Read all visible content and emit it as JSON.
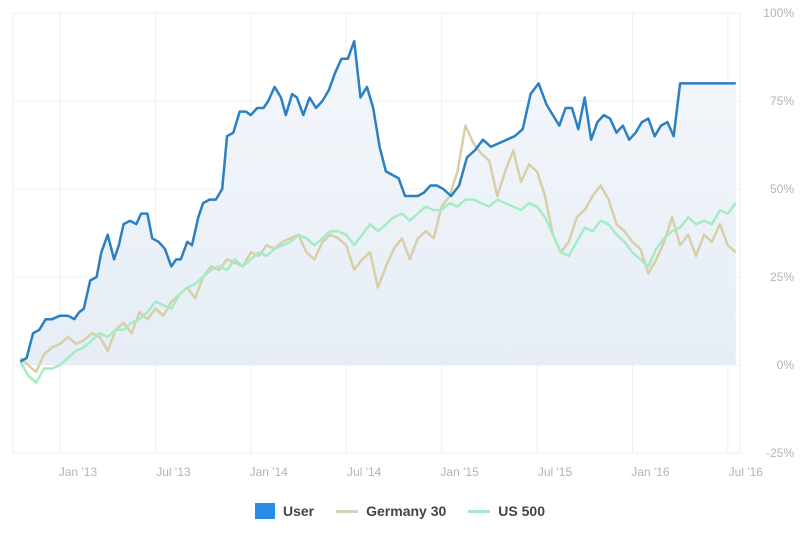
{
  "chart_data": {
    "type": "line",
    "title": "",
    "xlabel": "",
    "ylabel": "",
    "x_unit": "months since Jan 2013",
    "xlim": [
      -2.6,
      42.7
    ],
    "ylim": [
      -25,
      100
    ],
    "y_ticks": [
      {
        "value": 100,
        "label": "100%"
      },
      {
        "value": 75,
        "label": "75%"
      },
      {
        "value": 50,
        "label": "50%"
      },
      {
        "value": 25,
        "label": "25%"
      },
      {
        "value": 0,
        "label": "0%"
      },
      {
        "value": -25,
        "label": "-25%"
      }
    ],
    "x_ticks": [
      {
        "value": 0,
        "label": "Jan '13"
      },
      {
        "value": 6,
        "label": "Jul '13"
      },
      {
        "value": 12,
        "label": "Jan '14"
      },
      {
        "value": 18,
        "label": "Jul '14"
      },
      {
        "value": 24,
        "label": "Jan '15"
      },
      {
        "value": 30,
        "label": "Jul '15"
      },
      {
        "value": 36,
        "label": "Jan '16"
      },
      {
        "value": 42,
        "label": "Jul '16"
      }
    ],
    "grid": true,
    "legend_position": "bottom",
    "series": [
      {
        "name": "User",
        "color": "#2b7fc3",
        "legend_color": "#2a8ce6",
        "area": true,
        "x": [
          -2.5,
          -2.1,
          -1.7,
          -1.3,
          -0.9,
          -0.5,
          0,
          0.5,
          0.9,
          1.2,
          1.5,
          1.9,
          2.3,
          2.6,
          3,
          3.4,
          3.7,
          4,
          4.4,
          4.8,
          5.1,
          5.5,
          5.8,
          6.2,
          6.6,
          7,
          7.3,
          7.6,
          8,
          8.3,
          8.7,
          9,
          9.4,
          9.8,
          10.2,
          10.5,
          10.9,
          11.3,
          11.7,
          12,
          12.4,
          12.8,
          13.1,
          13.5,
          13.9,
          14.2,
          14.6,
          14.9,
          15.3,
          15.7,
          16.1,
          16.5,
          16.9,
          17.3,
          17.7,
          18.1,
          18.5,
          18.9,
          19.3,
          19.7,
          20.1,
          20.5,
          20.9,
          21.3,
          21.7,
          22.1,
          22.5,
          22.9,
          23.3,
          23.7,
          24.1,
          24.6,
          25.1,
          25.6,
          26.1,
          26.6,
          27.1,
          27.6,
          28.1,
          28.6,
          29.1,
          29.6,
          30.1,
          30.6,
          31,
          31.4,
          31.8,
          32.2,
          32.6,
          33,
          33.4,
          33.8,
          34.2,
          34.6,
          35,
          35.4,
          35.8,
          36.2,
          36.6,
          37,
          37.4,
          37.8,
          38.2,
          38.6,
          39,
          39.4,
          39.8,
          40.2,
          40.6,
          41,
          41.4,
          41.8,
          42.2,
          42.5
        ],
        "y": [
          1,
          2,
          9,
          10,
          13,
          13,
          14,
          14,
          13,
          15,
          16,
          24,
          25,
          32,
          37,
          30,
          34,
          40,
          41,
          40,
          43,
          43,
          36,
          35,
          33,
          28,
          30,
          30,
          35,
          34,
          42,
          46,
          47,
          47,
          50,
          65,
          66,
          72,
          72,
          71,
          73,
          73,
          75,
          79,
          76,
          71,
          77,
          76,
          71,
          76,
          73,
          75,
          78,
          83,
          87,
          87,
          92,
          76,
          79,
          73,
          62,
          55,
          54,
          53,
          48,
          48,
          48,
          49,
          51,
          51,
          50,
          48,
          51,
          59,
          61,
          64,
          62,
          63,
          64,
          65,
          67,
          77,
          80,
          74,
          71,
          68,
          73,
          73,
          67,
          76,
          64,
          69,
          71,
          70,
          66,
          68,
          64,
          66,
          69,
          70,
          65,
          68,
          69,
          65,
          80,
          80,
          80,
          80,
          80,
          80,
          80,
          80,
          80,
          80
        ],
        "y_note": "approximate"
      },
      {
        "name": "Germany 30",
        "color": "#d8cfa8",
        "legend_color": "#cfd6b2",
        "x": [
          -2.5,
          -2,
          -1.5,
          -1,
          -0.5,
          0,
          0.5,
          1,
          1.5,
          2,
          2.5,
          3,
          3.5,
          4,
          4.5,
          5,
          5.5,
          6,
          6.5,
          7,
          7.5,
          8,
          8.5,
          9,
          9.5,
          10,
          10.5,
          11,
          11.5,
          12,
          12.5,
          13,
          13.5,
          14,
          14.5,
          15,
          15.5,
          16,
          16.5,
          17,
          17.5,
          18,
          18.5,
          19,
          19.5,
          20,
          20.5,
          21,
          21.5,
          22,
          22.5,
          23,
          23.5,
          24,
          24.5,
          25,
          25.5,
          26,
          26.5,
          27,
          27.5,
          28,
          28.5,
          29,
          29.5,
          30,
          30.5,
          31,
          31.5,
          32,
          32.5,
          33,
          33.5,
          34,
          34.5,
          35,
          35.5,
          36,
          36.5,
          37,
          37.5,
          38,
          38.5,
          39,
          39.5,
          40,
          40.5,
          41,
          41.5,
          42,
          42.5
        ],
        "y": [
          2,
          0,
          -2,
          3,
          5,
          6,
          8,
          6,
          7,
          9,
          8,
          4,
          10,
          12,
          9,
          15,
          13,
          16,
          14,
          18,
          20,
          22,
          19,
          25,
          28,
          27,
          30,
          29,
          28,
          32,
          31,
          34,
          33,
          35,
          36,
          37,
          32,
          30,
          35,
          37,
          36,
          34,
          27,
          30,
          32,
          22,
          28,
          33,
          36,
          30,
          36,
          38,
          36,
          45,
          48,
          55,
          68,
          63,
          60,
          58,
          48,
          55,
          61,
          52,
          57,
          55,
          48,
          37,
          32,
          35,
          42,
          44,
          48,
          51,
          47,
          40,
          38,
          35,
          33,
          26,
          30,
          35,
          42,
          34,
          37,
          31,
          37,
          35,
          40,
          34,
          32
        ],
        "y_note": "approximate"
      },
      {
        "name": "US 500",
        "color": "#a4ecc4",
        "legend_color": "#a8e6cf",
        "x": [
          -2.5,
          -2,
          -1.5,
          -1,
          -0.5,
          0,
          0.5,
          1,
          1.5,
          2,
          2.5,
          3,
          3.5,
          4,
          4.5,
          5,
          5.5,
          6,
          6.5,
          7,
          7.5,
          8,
          8.5,
          9,
          9.5,
          10,
          10.5,
          11,
          11.5,
          12,
          12.5,
          13,
          13.5,
          14,
          14.5,
          15,
          15.5,
          16,
          16.5,
          17,
          17.5,
          18,
          18.5,
          19,
          19.5,
          20,
          20.5,
          21,
          21.5,
          22,
          22.5,
          23,
          23.5,
          24,
          24.5,
          25,
          25.5,
          26,
          26.5,
          27,
          27.5,
          28,
          28.5,
          29,
          29.5,
          30,
          30.5,
          31,
          31.5,
          32,
          32.5,
          33,
          33.5,
          34,
          34.5,
          35,
          35.5,
          36,
          36.5,
          37,
          37.5,
          38,
          38.5,
          39,
          39.5,
          40,
          40.5,
          41,
          41.5,
          42,
          42.5
        ],
        "y": [
          1,
          -3,
          -5,
          -1,
          -1,
          0,
          2,
          4,
          5,
          7,
          9,
          8,
          10,
          10,
          12,
          13,
          15,
          18,
          17,
          16,
          20,
          22,
          23,
          25,
          27,
          28,
          27,
          30,
          28,
          30,
          32,
          31,
          33,
          34,
          35,
          37,
          36,
          34,
          36,
          38,
          38,
          37,
          34,
          37,
          40,
          38,
          40,
          42,
          43,
          41,
          43,
          45,
          44,
          44,
          46,
          45,
          47,
          47,
          46,
          45,
          47,
          46,
          45,
          44,
          46,
          45,
          42,
          37,
          32,
          31,
          35,
          39,
          38,
          41,
          40,
          37,
          35,
          32,
          30,
          28,
          33,
          36,
          38,
          39,
          42,
          40,
          41,
          40,
          44,
          43,
          46
        ],
        "y_note": "approximate"
      }
    ]
  }
}
